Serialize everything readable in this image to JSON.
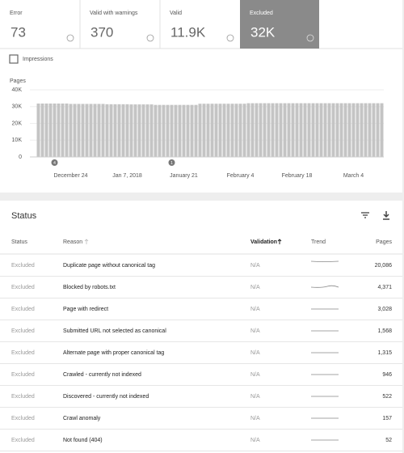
{
  "summary_cards": [
    {
      "label": "Error",
      "value": "73"
    },
    {
      "label": "Valid with warnings",
      "value": "370"
    },
    {
      "label": "Valid",
      "value": "11.9K"
    },
    {
      "label": "Excluded",
      "value": "32K"
    }
  ],
  "checkbox": {
    "label": "Impressions"
  },
  "chart_data": {
    "type": "bar",
    "y_label": "Pages",
    "color": "#c4c4c4",
    "grid": true,
    "ylim": [
      0,
      40000
    ],
    "yticks": [
      0,
      {
        "value": 10000,
        "label": "10K"
      },
      {
        "value": 20000,
        "label": "20K"
      },
      {
        "value": 30000,
        "label": "30K"
      },
      {
        "value": 40000,
        "label": "40K"
      }
    ],
    "categories": [
      null,
      null,
      null,
      null,
      null,
      null,
      null,
      null,
      "December 24",
      null,
      null,
      null,
      null,
      null,
      null,
      null,
      null,
      null,
      null,
      null,
      null,
      null,
      "Jan 7, 2018",
      null,
      null,
      null,
      null,
      null,
      null,
      null,
      null,
      null,
      null,
      null,
      null,
      null,
      "January 21",
      null,
      null,
      null,
      null,
      null,
      null,
      null,
      null,
      null,
      null,
      null,
      null,
      null,
      "February 4",
      null,
      null,
      null,
      null,
      null,
      null,
      null,
      null,
      null,
      null,
      null,
      null,
      null,
      "February 18",
      null,
      null,
      null,
      null,
      null,
      null,
      null,
      null,
      null,
      null,
      null,
      null,
      null,
      "March 4",
      null,
      null,
      null,
      null,
      null,
      null,
      null
    ],
    "values": [
      31800,
      31800,
      31800,
      31800,
      31800,
      31800,
      31800,
      31800,
      31600,
      31600,
      31600,
      31600,
      31600,
      31600,
      31600,
      31600,
      31600,
      31400,
      31400,
      31400,
      31400,
      31400,
      31400,
      31300,
      31300,
      31300,
      31300,
      31300,
      31300,
      31000,
      31000,
      31000,
      31000,
      31000,
      31000,
      31000,
      31000,
      31000,
      31000,
      31000,
      31700,
      31700,
      31700,
      31700,
      31700,
      31700,
      31700,
      31700,
      31700,
      31700,
      31700,
      31700,
      32000,
      32000,
      32000,
      32000,
      32000,
      32000,
      32000,
      32000,
      32000,
      32000,
      32000,
      32000,
      32000,
      32000,
      32000,
      32000,
      32000,
      32000,
      32000,
      32000,
      32000,
      32000,
      32000,
      32000,
      32000,
      32000,
      32000,
      32000,
      32000,
      32000,
      32000,
      32000,
      32000,
      32000
    ],
    "annotations": [
      {
        "at": 4,
        "label": "4"
      },
      {
        "at": 33,
        "label": "1"
      }
    ]
  },
  "status_table": {
    "title": "Status",
    "columns": [
      "Status",
      "Reason",
      "Validation",
      "Trend",
      "Pages"
    ],
    "rows": [
      [
        "Excluded",
        "Duplicate page without canonical tag",
        "N/A",
        "20,086"
      ],
      [
        "Excluded",
        "Blocked by robots.txt",
        "N/A",
        "4,371"
      ],
      [
        "Excluded",
        "Page with redirect",
        "N/A",
        "3,028"
      ],
      [
        "Excluded",
        "Submitted URL not selected as canonical",
        "N/A",
        "1,568"
      ],
      [
        "Excluded",
        "Alternate page with proper canonical tag",
        "N/A",
        "1,315"
      ],
      [
        "Excluded",
        "Crawled - currently not indexed",
        "N/A",
        "946"
      ],
      [
        "Excluded",
        "Discovered - currently not indexed",
        "N/A",
        "522"
      ],
      [
        "Excluded",
        "Crawl anomaly",
        "N/A",
        "157"
      ],
      [
        "Excluded",
        "Not found (404)",
        "N/A",
        "52"
      ]
    ]
  }
}
